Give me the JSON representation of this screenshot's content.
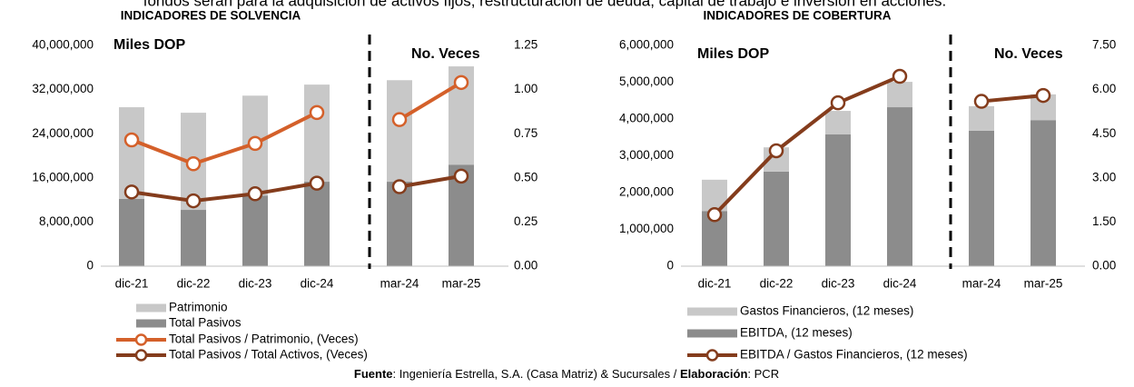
{
  "caption": "fondos serán para la adquisición de activos fijos, restructuración de deuda, capital de trabajo e inversión en acciones.",
  "chart_data": [
    {
      "type": "bar",
      "title": "INDICADORES DE SOLVENCIA",
      "annotations": [
        "Miles DOP",
        "No. Veces"
      ],
      "categories": [
        "dic-21",
        "dic-22",
        "dic-23",
        "dic-24",
        "mar-24",
        "mar-25"
      ],
      "series": [
        {
          "name": "Patrimonio",
          "type": "bar",
          "color": "#c8c8c8",
          "values": [
            16600000,
            17600000,
            18100000,
            17600000,
            18400000,
            17800000
          ]
        },
        {
          "name": "Total Pasivos",
          "type": "bar",
          "color": "#8c8c8c",
          "values": [
            12200000,
            10200000,
            12800000,
            15300000,
            15300000,
            18400000
          ]
        },
        {
          "name": "Total Pasivos / Patrimonio, (Veces)",
          "type": "line",
          "axis": "y2",
          "color": "#d4602a",
          "values": [
            0.715,
            0.58,
            0.695,
            0.87,
            0.83,
            1.04
          ]
        },
        {
          "name": "Total Pasivos / Total Activos, (Veces)",
          "type": "line",
          "axis": "y2",
          "color": "#843c1c",
          "values": [
            0.42,
            0.37,
            0.41,
            0.47,
            0.45,
            0.51
          ]
        }
      ],
      "ylim": [
        0,
        40000000
      ],
      "yticks": [
        0,
        {
          "value": 8000000,
          "label": "8,000,000"
        },
        {
          "value": 16000000,
          "label": "16,000,000"
        },
        {
          "value": 24000000,
          "label": "24,000,000"
        },
        {
          "value": 32000000,
          "label": "32,000,000"
        },
        {
          "value": 40000000,
          "label": "40,000,000"
        }
      ],
      "y2lim": [
        0,
        1.25
      ],
      "y2ticks": [
        {
          "value": 0,
          "label": "0.00"
        },
        {
          "value": 0.25,
          "label": "0.25"
        },
        {
          "value": 0.5,
          "label": "0.50"
        },
        {
          "value": 0.75,
          "label": "0.75"
        },
        {
          "value": 1,
          "label": "1.00"
        },
        1.25
      ],
      "grid": false
    },
    {
      "type": "bar",
      "title": "INDICADORES DE COBERTURA",
      "annotations": [
        "Miles DOP",
        "No. Veces"
      ],
      "categories": [
        "dic-21",
        "dic-22",
        "dic-23",
        "dic-24",
        "mar-24",
        "mar-25"
      ],
      "series": [
        {
          "name": "Gastos Financieros, (12 meses)",
          "type": "bar",
          "color": "#c8c8c8",
          "values": [
            850000,
            660000,
            640000,
            690000,
            670000,
            700000
          ]
        },
        {
          "name": "EBITDA, (12 meses)",
          "type": "bar",
          "color": "#8c8c8c",
          "values": [
            1500000,
            2570000,
            3580000,
            4320000,
            3680000,
            3970000
          ]
        },
        {
          "name": "EBITDA / Gastos Financieros, (12 meses)",
          "type": "line",
          "axis": "y2",
          "color": "#843c1c",
          "values": [
            1.75,
            3.92,
            5.55,
            6.45,
            5.6,
            5.8
          ]
        }
      ],
      "ylim": [
        0,
        6000000
      ],
      "yticks": [
        0,
        {
          "value": 1000000,
          "label": "1,000,000"
        },
        {
          "value": 2000000,
          "label": "2,000,000"
        },
        {
          "value": 3000000,
          "label": "3,000,000"
        },
        {
          "value": 4000000,
          "label": "4,000,000"
        },
        {
          "value": 5000000,
          "label": "5,000,000"
        },
        {
          "value": 6000000,
          "label": "6,000,000"
        }
      ],
      "y2lim": [
        0,
        7.5
      ],
      "y2ticks": [
        {
          "value": 0,
          "label": "0.00"
        },
        {
          "value": 1.5,
          "label": "1.50"
        },
        {
          "value": 3,
          "label": "3.00"
        },
        {
          "value": 4.5,
          "label": "4.50"
        },
        {
          "value": 6,
          "label": "6.00"
        },
        {
          "value": 7.5,
          "label": "7.50"
        }
      ],
      "grid": false
    }
  ],
  "source": [
    "Fuente",
    ": Ingeniería Estrella, S.A. (Casa Matriz) & Sucursales / ",
    "Elaboración",
    ": PCR"
  ]
}
